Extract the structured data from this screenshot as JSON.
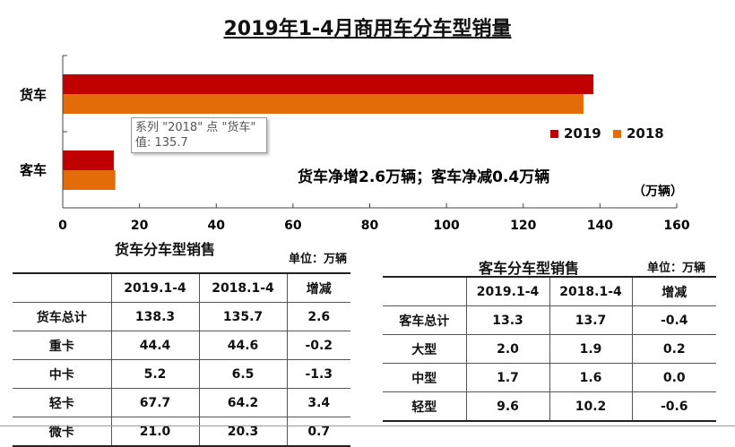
{
  "title": "2019年1-4月商用车分车型销量",
  "chart_data": {
    "type": "bar",
    "orientation": "horizontal",
    "categories": [
      "货车",
      "客车"
    ],
    "series": [
      {
        "name": "2019",
        "color": "#C00000",
        "values": [
          138.3,
          13.3
        ]
      },
      {
        "name": "2018",
        "color": "#E36C09",
        "values": [
          135.7,
          13.7
        ]
      }
    ],
    "xlim": [
      0,
      160
    ],
    "xticks": [
      "0",
      "20",
      "40",
      "60",
      "80",
      "100",
      "120",
      "140",
      "160"
    ],
    "unit_label": "（万辆）",
    "annotation": "货车净增2.6万辆；客车净减0.4万辆",
    "legend_position": "right",
    "tooltip": {
      "line1": "系列 \"2018\" 点 \"货车\"",
      "line2": "值: 135.7"
    }
  },
  "truck_table": {
    "title": "货车分车型销售",
    "unit": "单位：万辆",
    "headers": [
      "",
      "2019.1-4",
      "2018.1-4",
      "增减"
    ],
    "rows": [
      [
        "货车总计",
        "138.3",
        "135.7",
        "2.6"
      ],
      [
        "重卡",
        "44.4",
        "44.6",
        "-0.2"
      ],
      [
        "中卡",
        "5.2",
        "6.5",
        "-1.3"
      ],
      [
        "轻卡",
        "67.7",
        "64.2",
        "3.4"
      ],
      [
        "微卡",
        "21.0",
        "20.3",
        "0.7"
      ]
    ]
  },
  "bus_table": {
    "title": "客车分车型销售",
    "unit": "单位：万辆",
    "headers": [
      "",
      "2019.1-4",
      "2018.1-4",
      "增减"
    ],
    "rows": [
      [
        "客车总计",
        "13.3",
        "13.7",
        "-0.4"
      ],
      [
        "大型",
        "2.0",
        "1.9",
        "0.2"
      ],
      [
        "中型",
        "1.7",
        "1.6",
        "0.0"
      ],
      [
        "轻型",
        "9.6",
        "10.2",
        "-0.6"
      ]
    ]
  }
}
